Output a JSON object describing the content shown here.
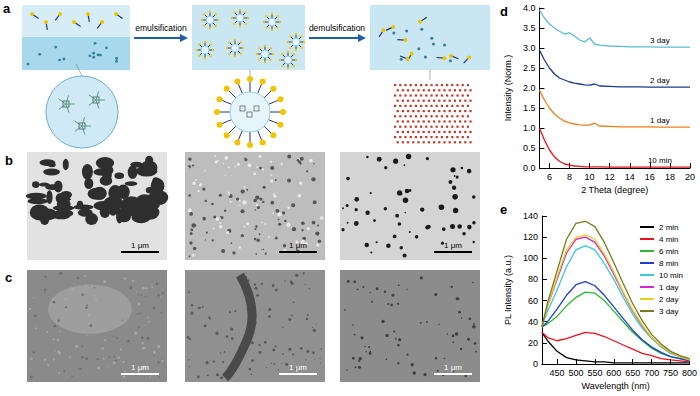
{
  "figure_panels": [
    {
      "title": "a",
      "labels": [
        "emulsification",
        "demulsification"
      ]
    },
    {
      "title": "b",
      "scale_bars": [
        "1 μm",
        "1 μm",
        "1 μm"
      ]
    },
    {
      "title": "c",
      "scale_bars": [
        "1 μm",
        "1 μm",
        "1 μm"
      ]
    }
  ],
  "chart_data": [
    {
      "title": "d",
      "type": "line",
      "x_label": "2 Theta (degree)",
      "y_label": "Intensity (Norm.)",
      "x": [
        5,
        5.5,
        6,
        6.5,
        7,
        7.5,
        8,
        8.5,
        9,
        9.5,
        10,
        10.5,
        11,
        12,
        13,
        14,
        15,
        16,
        17,
        18,
        19,
        20
      ],
      "series": [
        {
          "name": "10 min",
          "color": "#e8141a",
          "values": [
            1.0,
            0.7,
            0.45,
            0.28,
            0.17,
            0.1,
            0.07,
            0.05,
            0.04,
            0.03,
            0.03,
            0.03,
            0.03,
            0.02,
            0.02,
            0.02,
            0.02,
            0.02,
            0.02,
            0.02,
            0.02,
            0.02
          ]
        },
        {
          "name": "1 day",
          "color": "#f07d1a",
          "values": [
            1.95,
            1.7,
            1.5,
            1.35,
            1.25,
            1.17,
            1.13,
            1.1,
            1.08,
            1.07,
            1.07,
            1.12,
            1.05,
            1.04,
            1.03,
            1.03,
            1.03,
            1.03,
            1.02,
            1.02,
            1.02,
            1.02
          ]
        },
        {
          "name": "2 day",
          "color": "#1a3a8c",
          "values": [
            2.95,
            2.7,
            2.5,
            2.35,
            2.25,
            2.2,
            2.15,
            2.12,
            2.1,
            2.08,
            2.07,
            2.1,
            2.05,
            2.04,
            2.03,
            2.03,
            2.03,
            2.02,
            2.02,
            2.02,
            2.02,
            2.02
          ]
        },
        {
          "name": "3 day",
          "color": "#5bbcd6",
          "values": [
            3.95,
            3.75,
            3.6,
            3.5,
            3.42,
            3.35,
            3.38,
            3.3,
            3.2,
            3.15,
            3.25,
            3.1,
            3.07,
            3.05,
            3.04,
            3.03,
            3.03,
            3.03,
            3.02,
            3.02,
            3.02,
            3.02
          ]
        }
      ],
      "xlim": [
        5,
        20
      ],
      "xticks": [
        6,
        8,
        10,
        12,
        14,
        16,
        18,
        20
      ],
      "ylim": [
        0,
        4
      ],
      "yticks": [
        {
          "value": 0,
          "label": "0.0"
        },
        {
          "value": 0.5,
          "label": "0.5"
        },
        {
          "value": 1,
          "label": "1.0"
        },
        {
          "value": 1.5,
          "label": "1.5"
        },
        {
          "value": 2,
          "label": "2.0"
        },
        {
          "value": 2.5,
          "label": "2.5"
        },
        {
          "value": 3,
          "label": "3.0"
        },
        {
          "value": 3.5,
          "label": "3.5"
        },
        {
          "value": 4,
          "label": "4.0"
        }
      ],
      "grid": false,
      "legend": "inline"
    },
    {
      "title": "e",
      "type": "line",
      "x_label": "Wavelength (nm)",
      "y_label": "PL Intensity (a.u.)",
      "x": [
        410,
        425,
        450,
        475,
        500,
        525,
        550,
        575,
        600,
        625,
        650,
        675,
        700,
        725,
        750,
        775,
        800
      ],
      "series": [
        {
          "name": "2 min",
          "color": "#000000",
          "values": [
            30,
            22,
            12,
            6,
            4,
            3,
            2,
            2,
            1,
            1,
            1,
            1,
            1,
            1,
            1,
            1,
            1
          ]
        },
        {
          "name": "4 min",
          "color": "#e8141a",
          "values": [
            30,
            25,
            22,
            24,
            27,
            30,
            29,
            26,
            22,
            18,
            14,
            10,
            8,
            5,
            4,
            3,
            2
          ]
        },
        {
          "name": "6 min",
          "color": "#2eb82e",
          "values": [
            35,
            38,
            45,
            55,
            63,
            68,
            67,
            60,
            50,
            40,
            30,
            22,
            15,
            10,
            7,
            5,
            3
          ]
        },
        {
          "name": "8 min",
          "color": "#1f3fd1",
          "values": [
            35,
            40,
            52,
            65,
            75,
            78,
            74,
            65,
            54,
            43,
            32,
            23,
            16,
            11,
            7,
            5,
            3
          ]
        },
        {
          "name": "10 min",
          "color": "#3cc8d8",
          "values": [
            35,
            50,
            70,
            92,
            108,
            112,
            108,
            95,
            80,
            63,
            47,
            34,
            24,
            16,
            10,
            7,
            4
          ]
        },
        {
          "name": "1 day",
          "color": "#d42ad4",
          "values": [
            35,
            55,
            80,
            105,
            118,
            120,
            115,
            102,
            85,
            67,
            50,
            36,
            25,
            17,
            11,
            7,
            4
          ]
        },
        {
          "name": "2 day",
          "color": "#e0d21a",
          "values": [
            35,
            55,
            82,
            108,
            120,
            122,
            118,
            104,
            87,
            68,
            51,
            37,
            25,
            17,
            11,
            7,
            4
          ]
        },
        {
          "name": "3 day",
          "color": "#7a7a1e",
          "values": [
            35,
            58,
            88,
            118,
            133,
            135,
            130,
            115,
            96,
            76,
            57,
            41,
            28,
            19,
            12,
            8,
            5
          ]
        }
      ],
      "xlim": [
        410,
        800
      ],
      "xticks": [
        450,
        500,
        550,
        600,
        650,
        700,
        750,
        800
      ],
      "ylim": [
        0,
        140
      ],
      "yticks": [
        0,
        20,
        40,
        60,
        80,
        100,
        120,
        140
      ],
      "grid": false,
      "legend": "top-right"
    }
  ]
}
